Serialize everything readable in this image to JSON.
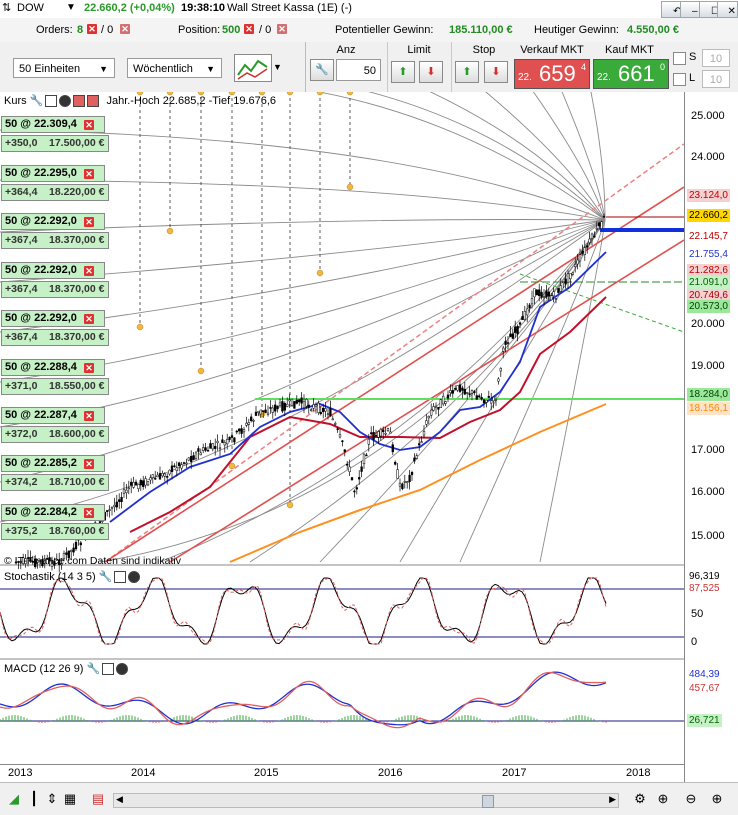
{
  "titlebar": {
    "symbol": "DOW",
    "price": "22.660,2 (+0,04%)",
    "time": "19:38:10",
    "instrument": "Wall Street Kassa (1E) (-)",
    "buttons": [
      "↶",
      "–",
      "☐",
      "✕"
    ]
  },
  "orders_row": {
    "orders_label": "Orders:",
    "orders_count": "8",
    "orders_sep": "/ 0",
    "position_label": "Position:",
    "position_count": "500",
    "position_sep": "/ 0",
    "potential_label": "Potentieller Gewinn:",
    "potential_value": "185.110,00 €",
    "today_label": "Heutiger Gewinn:",
    "today_value": "4.550,00 €"
  },
  "toolbar": {
    "units_select": "50 Einheiten",
    "period_select": "Wöchentlich",
    "anz_label": "Anz",
    "anz_value": "50",
    "limit_label": "Limit",
    "stop_label": "Stop",
    "sell_label": "Verkauf MKT",
    "buy_label": "Kauf MKT",
    "sell_small": "22.",
    "sell_big": "659",
    "sell_sup": "4",
    "buy_small": "22.",
    "buy_big": "661",
    "buy_sup": "0",
    "s_label": "S",
    "l_label": "L",
    "s_value": "10",
    "l_value": "10",
    "sell_color": "#e05050",
    "buy_color": "#3aaa3a"
  },
  "chart": {
    "kurs_title": "Kurs",
    "kurs_info": "Jahr.-Hoch 22.685,2 -Tief 19.676,6",
    "copyright": "© IT-Finance.com  Daten sind indikativ",
    "stoch_title": "Stochastik (14 3 5)",
    "macd_title": "MACD (12 26 9)",
    "order_tags": [
      {
        "top": "50 @ 22.309,4",
        "diff": "+350,0",
        "value": "17.500,00 €"
      },
      {
        "top": "50 @ 22.295,0",
        "diff": "+364,4",
        "value": "18.220,00 €"
      },
      {
        "top": "50 @ 22.292,0",
        "diff": "+367,4",
        "value": "18.370,00 €"
      },
      {
        "top": "50 @ 22.292,0",
        "diff": "+367,4",
        "value": "18.370,00 €"
      },
      {
        "top": "50 @ 22.292,0",
        "diff": "+367,4",
        "value": "18.370,00 €"
      },
      {
        "top": "50 @ 22.288,4",
        "diff": "+371,0",
        "value": "18.550,00 €"
      },
      {
        "top": "50 @ 22.287,4",
        "diff": "+372,0",
        "value": "18.600,00 €"
      },
      {
        "top": "50 @ 22.285,2",
        "diff": "+374,2",
        "value": "18.710,00 €"
      },
      {
        "top": "50 @ 22.284,2",
        "diff": "+375,2",
        "value": "18.760,00 €"
      }
    ],
    "price_ticks": [
      "25.000",
      "24.000",
      "20.000",
      "19.000",
      "17.000",
      "16.000",
      "15.000"
    ],
    "price_labels": [
      {
        "text": "23.124,0",
        "bg": "#f4d0d0",
        "color": "#c00000"
      },
      {
        "text": "22.660,2",
        "bg": "#ffd700",
        "color": "#000000"
      },
      {
        "text": "22.145,7",
        "bg": "#ffffff",
        "color": "#c00000"
      },
      {
        "text": "21.755,4",
        "bg": "#ffffff",
        "color": "#2233cc"
      },
      {
        "text": "21.282,6",
        "bg": "#f4d0d0",
        "color": "#c00000"
      },
      {
        "text": "21.091,0",
        "bg": "#c6f0c6",
        "color": "#006600"
      },
      {
        "text": "20.749,6",
        "bg": "#f4d0d0",
        "color": "#aa0000"
      },
      {
        "text": "20.573,0",
        "bg": "#9be89b",
        "color": "#004400"
      },
      {
        "text": "18.284,0",
        "bg": "#9be89b",
        "color": "#004400"
      },
      {
        "text": "18.156,1",
        "bg": "#fde4c8",
        "color": "#ff8800"
      }
    ],
    "stoch_ticks": [
      "50",
      "0"
    ],
    "stoch_labels": [
      {
        "text": "96,319",
        "bg": "#ffffff",
        "color": "#000000"
      },
      {
        "text": "87,525",
        "bg": "#ffffff",
        "color": "#cc3333"
      }
    ],
    "macd_labels": [
      {
        "text": "484,39",
        "bg": "#ffffff",
        "color": "#2233cc"
      },
      {
        "text": "457,67",
        "bg": "#ffffff",
        "color": "#cc3333"
      },
      {
        "text": "26,721",
        "bg": "#c6f0c6",
        "color": "#006600"
      }
    ],
    "x_ticks": [
      "2013",
      "2014",
      "2015",
      "2016",
      "2017",
      "2018"
    ]
  },
  "bottombar": {
    "icons_left": [
      "chart-type-icon",
      "candles-icon",
      "grid-icon",
      "bars-icon"
    ],
    "icons_right": [
      "settings-icon",
      "zoom-fit-icon",
      "zoom-out-icon",
      "zoom-in-icon"
    ],
    "scroll_left": "◀",
    "scroll_right": "▶"
  }
}
